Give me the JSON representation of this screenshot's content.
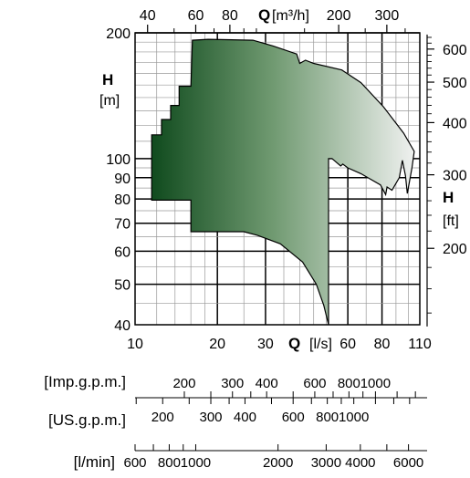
{
  "chart_data": {
    "type": "area",
    "x_axis_bottom": {
      "label": "Q",
      "unit": "[l/s]",
      "scale": "log",
      "range": [
        10,
        110
      ],
      "ticks": [
        10,
        20,
        30,
        60,
        80,
        110
      ]
    },
    "x_axis_top": {
      "label": "Q",
      "unit": "[m³/h]",
      "scale": "log",
      "ticks": [
        40,
        60,
        80,
        200,
        300
      ]
    },
    "y_axis_left": {
      "label": "H",
      "unit": "[m]",
      "scale": "log",
      "range": [
        40,
        200
      ],
      "ticks": [
        40,
        50,
        60,
        70,
        80,
        90,
        100,
        200
      ]
    },
    "y_axis_right": {
      "label": "H",
      "unit": "[ft]",
      "scale": "log",
      "ticks": [
        200,
        300,
        400,
        500,
        600
      ]
    },
    "series": [
      {
        "fill": "gradient",
        "gradient_colors": [
          "#0f4a1d",
          "#f4f4f4"
        ],
        "points": [
          [
            11.5,
            79.5
          ],
          [
            11.5,
            114
          ],
          [
            12.5,
            114
          ],
          [
            12.5,
            124
          ],
          [
            13.5,
            124
          ],
          [
            13.5,
            134
          ],
          [
            14.5,
            134
          ],
          [
            14.5,
            149
          ],
          [
            16,
            149
          ],
          [
            16.2,
            192
          ],
          [
            18.5,
            193
          ],
          [
            27,
            192
          ],
          [
            32,
            186
          ],
          [
            39,
            178
          ],
          [
            40,
            169
          ],
          [
            42,
            172
          ],
          [
            45,
            169
          ],
          [
            57,
            163
          ],
          [
            67,
            152
          ],
          [
            81,
            133
          ],
          [
            96,
            115
          ],
          [
            105,
            104
          ],
          [
            103,
            95
          ],
          [
            99,
            82.5
          ],
          [
            97.5,
            91
          ],
          [
            95,
            99
          ],
          [
            92.5,
            90
          ],
          [
            87,
            84
          ],
          [
            83.5,
            85.5
          ],
          [
            82.5,
            82
          ],
          [
            79,
            86.5
          ],
          [
            67,
            92
          ],
          [
            60,
            95
          ],
          [
            57.5,
            97
          ],
          [
            56.5,
            96
          ],
          [
            52.5,
            100
          ],
          [
            51,
            100
          ],
          [
            51,
            40
          ],
          [
            49,
            44.5
          ],
          [
            46,
            50
          ],
          [
            41,
            56.5
          ],
          [
            34,
            62.5
          ],
          [
            28,
            65.5
          ],
          [
            25,
            66.8
          ],
          [
            16,
            66.8
          ],
          [
            16,
            79.5
          ]
        ]
      }
    ],
    "secondary_scales": [
      {
        "label": "[Imp.g.p.m.]",
        "ticks": [
          "200",
          "300",
          "400",
          "600",
          "800",
          "1000"
        ]
      },
      {
        "label": "[US.g.p.m.]",
        "ticks": [
          "200",
          "300",
          "400",
          "600",
          "800",
          "1000"
        ]
      },
      {
        "label": "[l/min]",
        "ticks": [
          "600",
          "800",
          "1000",
          "2000",
          "3000",
          "4000",
          "6000"
        ]
      }
    ]
  }
}
